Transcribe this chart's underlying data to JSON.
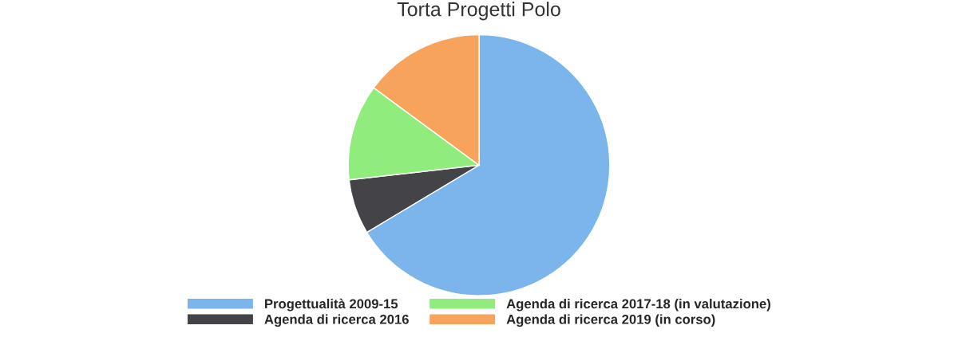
{
  "chart_data": {
    "type": "pie",
    "title": "Torta Progetti Polo",
    "categories": [
      "Progettualità 2009-15",
      "Agenda di ricerca 2016",
      "Agenda di ricerca 2017-18 (in valutazione)",
      "Agenda di ricerca 2019 (in corso)"
    ],
    "values": [
      66.4,
      6.8,
      11.9,
      14.9
    ],
    "colors": [
      "#7cb5ec",
      "#434348",
      "#90ed7d",
      "#f7a35c"
    ],
    "legend": "bottom"
  }
}
